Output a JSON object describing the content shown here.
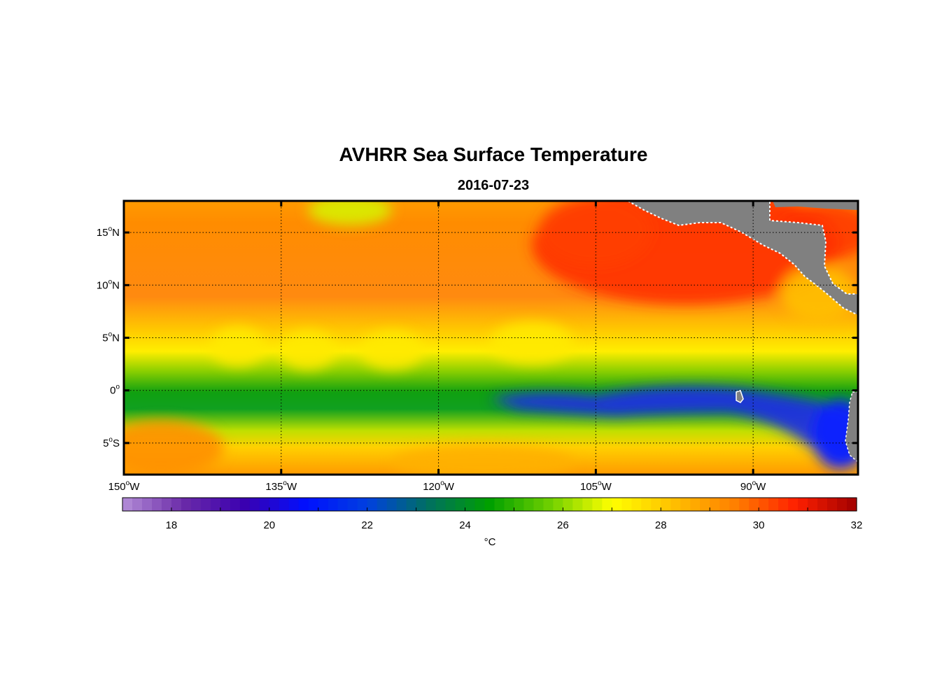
{
  "title": "AVHRR Sea Surface Temperature",
  "date": "2016-07-23",
  "map": {
    "lon_range": [
      -150,
      -80
    ],
    "lat_range": [
      -8,
      18
    ],
    "lat_ticks": [
      {
        "value": 15,
        "deg": "15",
        "hemi": "N"
      },
      {
        "value": 10,
        "deg": "10",
        "hemi": "N"
      },
      {
        "value": 5,
        "deg": "5",
        "hemi": "N"
      },
      {
        "value": 0,
        "deg": "0",
        "hemi": ""
      },
      {
        "value": -5,
        "deg": "5",
        "hemi": "S"
      }
    ],
    "lon_ticks": [
      {
        "value": -150,
        "deg": "150",
        "hemi": "W"
      },
      {
        "value": -135,
        "deg": "135",
        "hemi": "W"
      },
      {
        "value": -120,
        "deg": "120",
        "hemi": "W"
      },
      {
        "value": -105,
        "deg": "105",
        "hemi": "W"
      },
      {
        "value": -90,
        "deg": "90",
        "hemi": "W"
      }
    ],
    "grid": "dotted",
    "land_color": "#808080"
  },
  "colorbar": {
    "range": [
      17,
      32
    ],
    "ticks": [
      18,
      20,
      22,
      24,
      26,
      28,
      30,
      32
    ],
    "unit": "°C",
    "colors": [
      "#b48ed8",
      "#6a2aa8",
      "#3a00b0",
      "#0010ff",
      "#0040e0",
      "#007060",
      "#00a000",
      "#70d000",
      "#ffff00",
      "#ffc000",
      "#ff8000",
      "#ff2000",
      "#a00000"
    ]
  }
}
